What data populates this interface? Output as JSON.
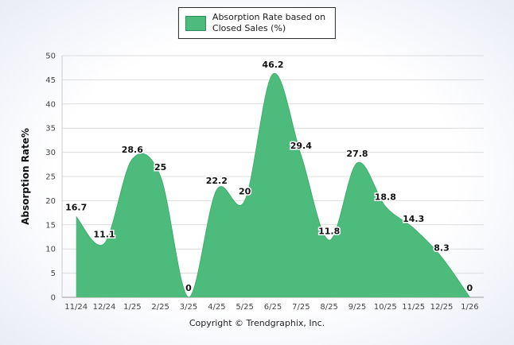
{
  "legend": {
    "label_line1": "Absorption Rate based on",
    "label_line2": "Closed Sales (%)"
  },
  "footer": {
    "text": "Copyright © Trendgraphix, Inc."
  },
  "chart_data": {
    "type": "area",
    "title": "Absorption Rate based on Closed Sales (%)",
    "categories": [
      "11/24",
      "12/24",
      "1/25",
      "2/25",
      "3/25",
      "4/25",
      "5/25",
      "6/25",
      "7/25",
      "8/25",
      "9/25",
      "10/25",
      "11/25",
      "12/25",
      "1/26"
    ],
    "values": [
      16.7,
      11.1,
      28.6,
      25,
      0,
      22.2,
      20,
      46.2,
      29.4,
      11.8,
      27.8,
      18.8,
      14.3,
      8.3,
      0
    ],
    "xlabel": "",
    "ylabel": "Absorption Rate%",
    "ylim": [
      0,
      50
    ],
    "ytick_step": 5,
    "grid": true,
    "legend_position": "top",
    "area_color": "#4DBB7C",
    "line_color": "#3FAE6E",
    "grid_color": "#dcdcdc",
    "axis_color": "#999999",
    "left_axis_color": "#cccccc",
    "tick_label_color": "#444444",
    "data_label_color": "#111111"
  }
}
